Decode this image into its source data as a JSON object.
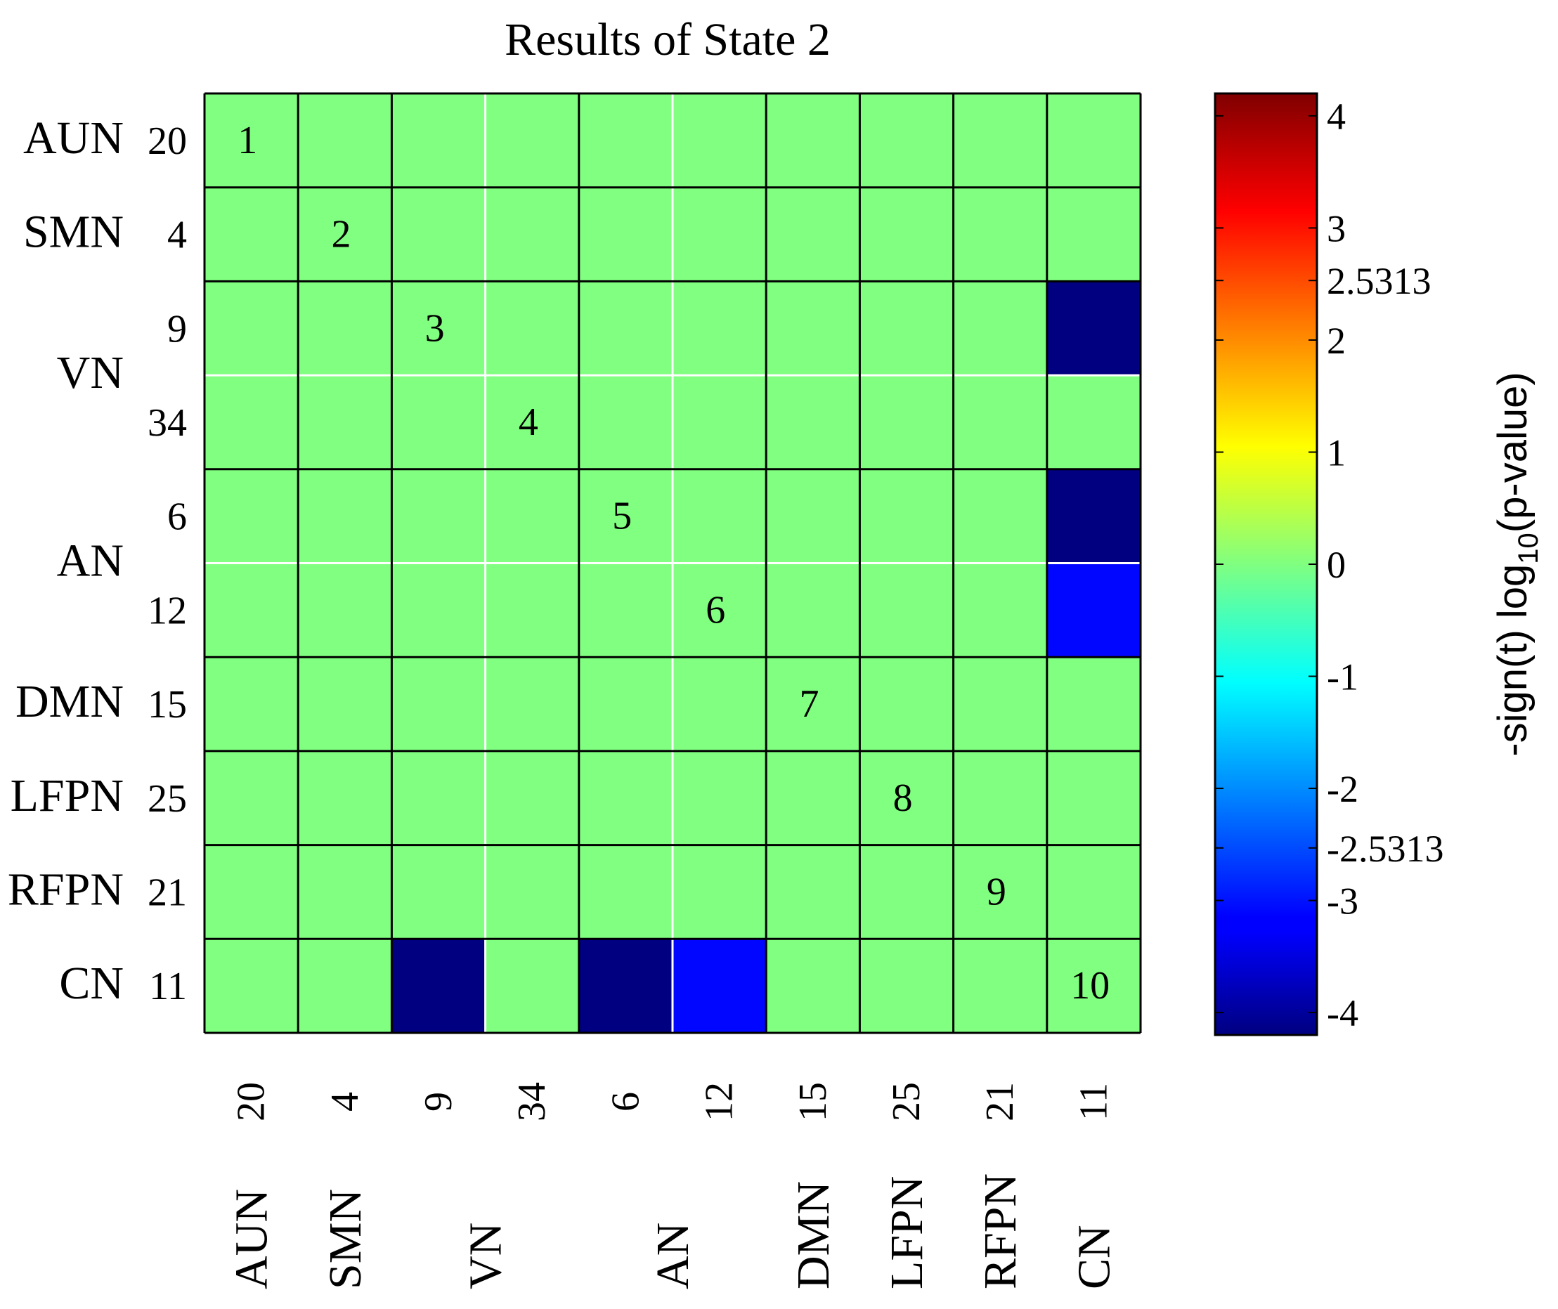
{
  "chart_data": {
    "type": "heatmap",
    "title": "Results of State 2",
    "rows": [
      "20",
      "4",
      "9",
      "34",
      "6",
      "12",
      "15",
      "25",
      "21",
      "11"
    ],
    "cols": [
      "20",
      "4",
      "9",
      "34",
      "6",
      "12",
      "15",
      "25",
      "21",
      "11"
    ],
    "groups": [
      {
        "label": "AUN",
        "start": 0,
        "size": 1
      },
      {
        "label": "SMN",
        "start": 1,
        "size": 1
      },
      {
        "label": "VN",
        "start": 2,
        "size": 2
      },
      {
        "label": "AN",
        "start": 4,
        "size": 2
      },
      {
        "label": "DMN",
        "start": 6,
        "size": 1
      },
      {
        "label": "LFPN",
        "start": 7,
        "size": 1
      },
      {
        "label": "RFPN",
        "start": 8,
        "size": 1
      },
      {
        "label": "CN",
        "start": 9,
        "size": 1
      }
    ],
    "diagonal_labels": [
      "1",
      "2",
      "3",
      "4",
      "5",
      "6",
      "7",
      "8",
      "9",
      "10"
    ],
    "values": [
      [
        0,
        0,
        0,
        0,
        0,
        0,
        0,
        0,
        0,
        0
      ],
      [
        0,
        0,
        0,
        0,
        0,
        0,
        0,
        0,
        0,
        0
      ],
      [
        0,
        0,
        0,
        0,
        0,
        0,
        0,
        0,
        0,
        -4.2
      ],
      [
        0,
        0,
        0,
        0,
        0,
        0,
        0,
        0,
        0,
        0
      ],
      [
        0,
        0,
        0,
        0,
        0,
        0,
        0,
        0,
        0,
        -4.2
      ],
      [
        0,
        0,
        0,
        0,
        0,
        0,
        0,
        0,
        0,
        -3.1
      ],
      [
        0,
        0,
        0,
        0,
        0,
        0,
        0,
        0,
        0,
        0
      ],
      [
        0,
        0,
        0,
        0,
        0,
        0,
        0,
        0,
        0,
        0
      ],
      [
        0,
        0,
        0,
        0,
        0,
        0,
        0,
        0,
        0,
        0
      ],
      [
        0,
        0,
        -4.2,
        0,
        -4.2,
        -3.1,
        0,
        0,
        0,
        0
      ]
    ],
    "colorbar": {
      "label_prefix": "-sign(t) log",
      "label_sub": "10",
      "label_suffix": "(p-value)",
      "range": [
        -4.2,
        4.2
      ],
      "ticks": [
        {
          "value": 4,
          "label": "4"
        },
        {
          "value": 3,
          "label": "3"
        },
        {
          "value": 2.5313,
          "label": "2.5313"
        },
        {
          "value": 2,
          "label": "2"
        },
        {
          "value": 1,
          "label": "1"
        },
        {
          "value": 0,
          "label": "0"
        },
        {
          "value": -1,
          "label": "-1"
        },
        {
          "value": -2,
          "label": "-2"
        },
        {
          "value": -2.5313,
          "label": "-2.5313"
        },
        {
          "value": -3,
          "label": "-3"
        },
        {
          "value": -4,
          "label": "-4"
        }
      ]
    },
    "colormap": "jet"
  }
}
